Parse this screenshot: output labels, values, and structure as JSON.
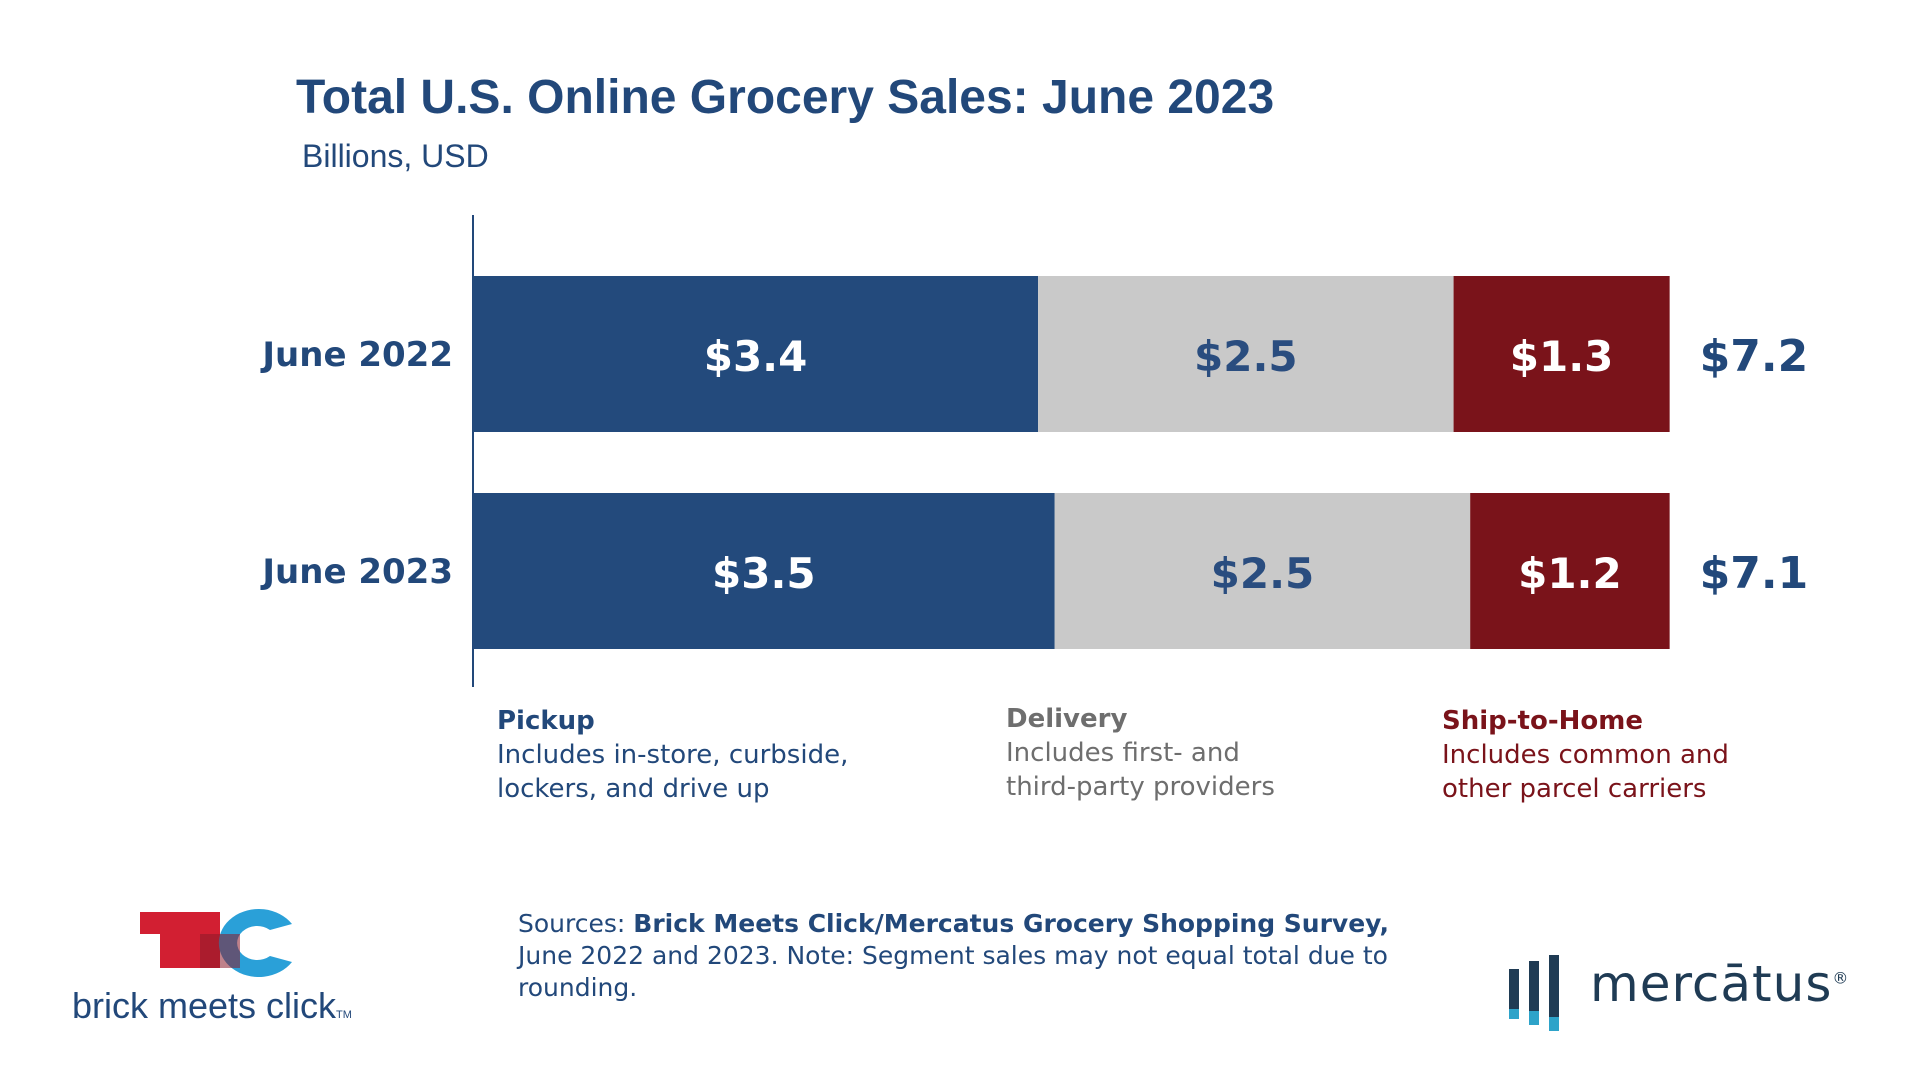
{
  "chart_data": {
    "type": "bar",
    "stacked": true,
    "orientation": "horizontal",
    "title": "Total U.S. Online Grocery Sales: June 2023",
    "subtitle": "Billions, USD",
    "categories": [
      "June 2022",
      "June 2023"
    ],
    "series": [
      {
        "name": "Pickup",
        "values": [
          3.4,
          3.5
        ],
        "labels": [
          "$3.4",
          "$3.5"
        ],
        "color": "#234a7c",
        "label_color": "#ffffff"
      },
      {
        "name": "Delivery",
        "values": [
          2.5,
          2.5
        ],
        "labels": [
          "$2.5",
          "$2.5"
        ],
        "color": "#c9c9c9",
        "label_color": "#2a4d7f"
      },
      {
        "name": "Ship-to-Home",
        "values": [
          1.3,
          1.2
        ],
        "labels": [
          "$1.3",
          "$1.2"
        ],
        "color": "#7a131a",
        "label_color": "#ffffff"
      }
    ],
    "totals": [
      "$7.2",
      "$7.1"
    ],
    "total_color": "#22487a",
    "category_label_color": "#22487a",
    "grid": false
  },
  "legend": [
    {
      "head": "Pickup",
      "desc": "Includes in-store, curbside, lockers, and drive up",
      "color": "#22487a"
    },
    {
      "head": "Delivery",
      "desc": "Includes first- and third-party providers",
      "color": "#6e6e6e"
    },
    {
      "head": "Ship-to-Home",
      "desc": "Includes common and other parcel carriers",
      "color": "#7a131a"
    }
  ],
  "sources": {
    "label": "Sources: ",
    "bold": "Brick Meets Click/Mercatus Grocery Shopping Survey,",
    "rest": " June 2022 and 2023. Note: Segment sales may not equal total due to rounding."
  },
  "logos": {
    "brick_meets_click": "brick meets click",
    "brick_meets_click_tm": "TM",
    "mercatus": "mercātus",
    "mercatus_reg": "®"
  }
}
